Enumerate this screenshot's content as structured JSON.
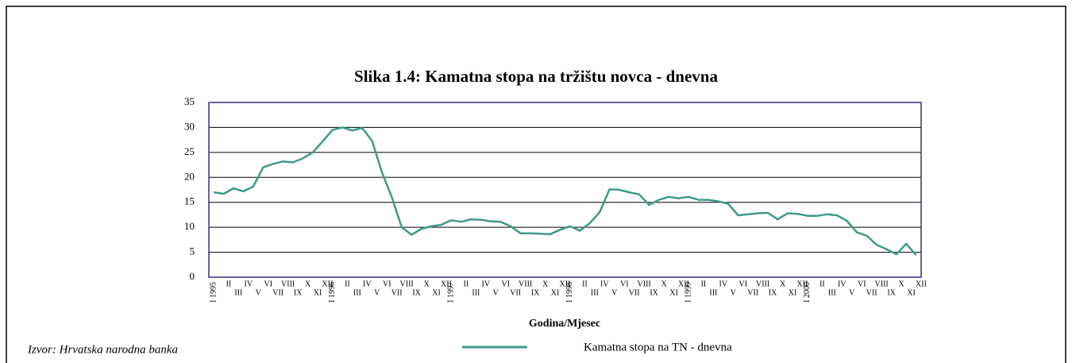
{
  "chart_data": {
    "type": "line",
    "title": "Slika 1.4: Kamatna stopa na tržištu novca - dnevna",
    "x_label": "Godina/Mjesec",
    "source": "Izvor: Hrvatska narodna banka",
    "categories": [
      "I 1995",
      "II",
      "III",
      "IV",
      "V",
      "VI",
      "VII",
      "VIII",
      "IX",
      "X",
      "XI",
      "XII",
      "I 1996",
      "II",
      "III",
      "IV",
      "V",
      "VI",
      "VII",
      "VIII",
      "IX",
      "X",
      "XI",
      "XII",
      "I 1997",
      "II",
      "III",
      "IV",
      "V",
      "VI",
      "VII",
      "VIII",
      "IX",
      "X",
      "XI",
      "XII",
      "I 1998",
      "II",
      "III",
      "IV",
      "V",
      "VI",
      "VII",
      "VIII",
      "IX",
      "X",
      "XI",
      "XII",
      "I 1999",
      "II",
      "III",
      "IV",
      "V",
      "VI",
      "VII",
      "VIII",
      "IX",
      "X",
      "XI",
      "XII",
      "I 2000",
      "II",
      "III",
      "IV",
      "V",
      "VI",
      "VII",
      "VIII",
      "IX",
      "X",
      "XI",
      "XII"
    ],
    "series": [
      {
        "name": "Kamatna stopa na TN - dnevna",
        "color": "#3f9a88",
        "values": [
          17,
          16.7,
          17.8,
          17.2,
          18.2,
          22,
          22.7,
          23.2,
          23,
          23.8,
          25,
          27.2,
          29.5,
          30,
          29.4,
          29.9,
          27.3,
          21,
          16,
          10,
          8.5,
          9.7,
          10.2,
          10.5,
          11.4,
          11.1,
          11.6,
          11.5,
          11.2,
          11.1,
          10.2,
          8.8,
          8.8,
          8.7,
          8.6,
          9.5,
          10.2,
          9.3,
          10.8,
          13,
          17.6,
          17.5,
          17,
          16.6,
          14.5,
          15.5,
          16.1,
          15.8,
          16.1,
          15.5,
          15.5,
          15.2,
          14.7,
          12.4,
          12.6,
          12.8,
          12.9,
          11.6,
          12.8,
          12.7,
          12.3,
          12.3,
          12.6,
          12.4,
          11.3,
          9,
          8.3,
          6.5,
          5.6,
          4.6,
          6.7,
          4.4
        ]
      }
    ],
    "ylim": [
      0,
      35
    ],
    "yticks": [
      0,
      5,
      10,
      15,
      20,
      25,
      30,
      35
    ],
    "grid": true
  }
}
